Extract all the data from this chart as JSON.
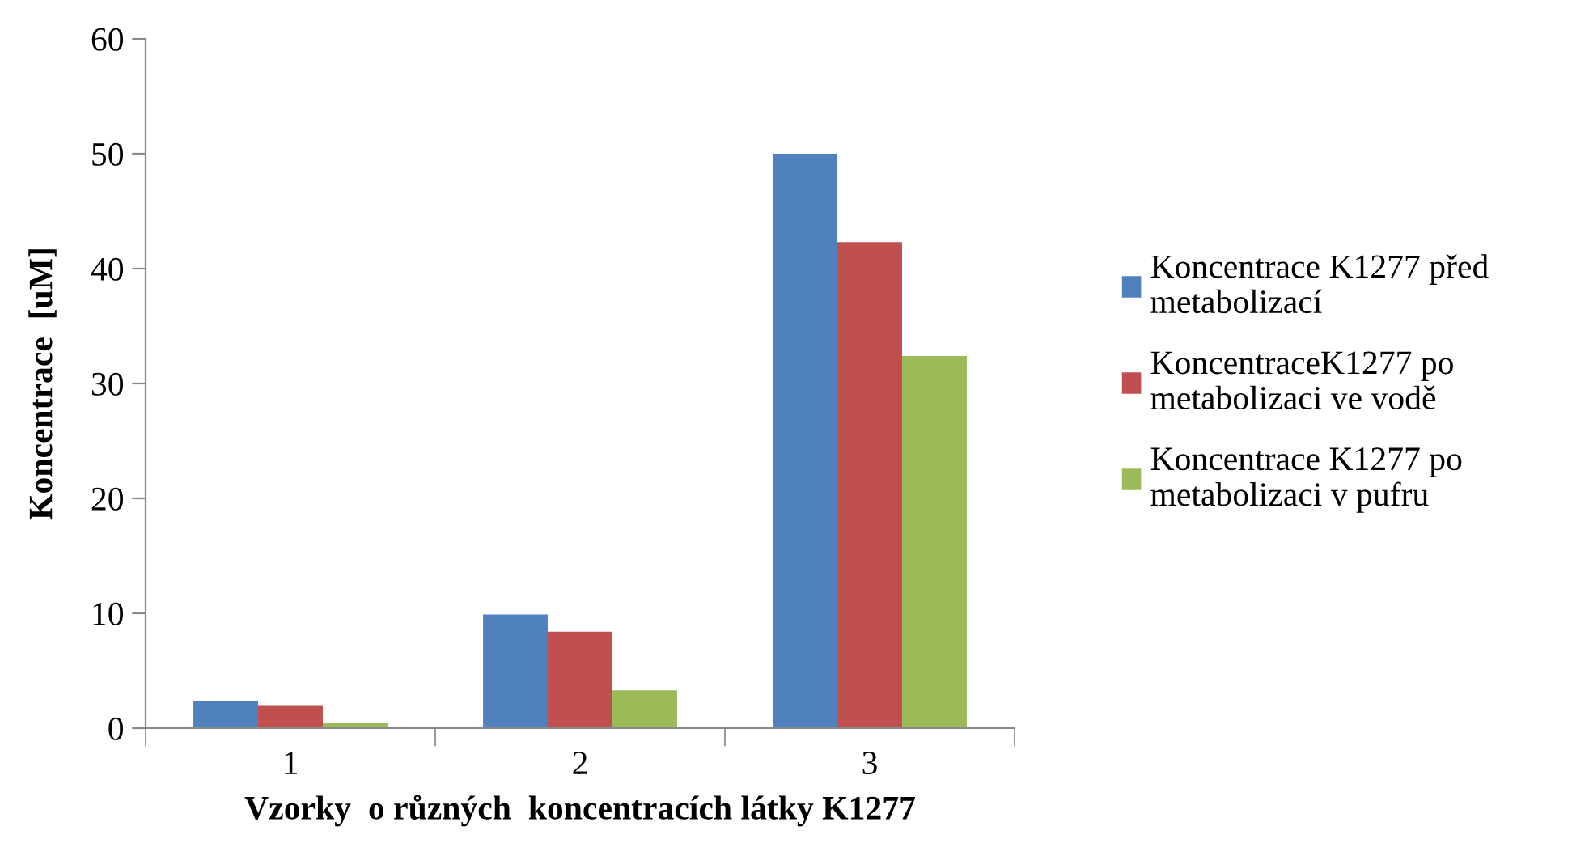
{
  "chart_data": {
    "type": "bar",
    "xlabel": "Vzorky  o různých  koncentracích látky K1277",
    "ylabel": "Koncentrace  [uM]",
    "categories": [
      "1",
      "2",
      "3"
    ],
    "series": [
      {
        "name": "Koncentrace K1277 před\nmetabolizací",
        "color": "#4f81bd",
        "values": [
          2.4,
          9.9,
          50.0
        ]
      },
      {
        "name": "KoncentraceK1277 po\nmetabolizaci ve vodě",
        "color": "#c0504d",
        "values": [
          2.0,
          8.4,
          42.3
        ]
      },
      {
        "name": "Koncentrace K1277 po\nmetabolizaci v pufru",
        "color": "#9bbb59",
        "values": [
          0.5,
          3.3,
          32.4
        ]
      }
    ],
    "ylim": [
      0,
      60
    ],
    "yticks": [
      0,
      10,
      20,
      30,
      40,
      50,
      60
    ],
    "grid": false,
    "legend": "right"
  }
}
